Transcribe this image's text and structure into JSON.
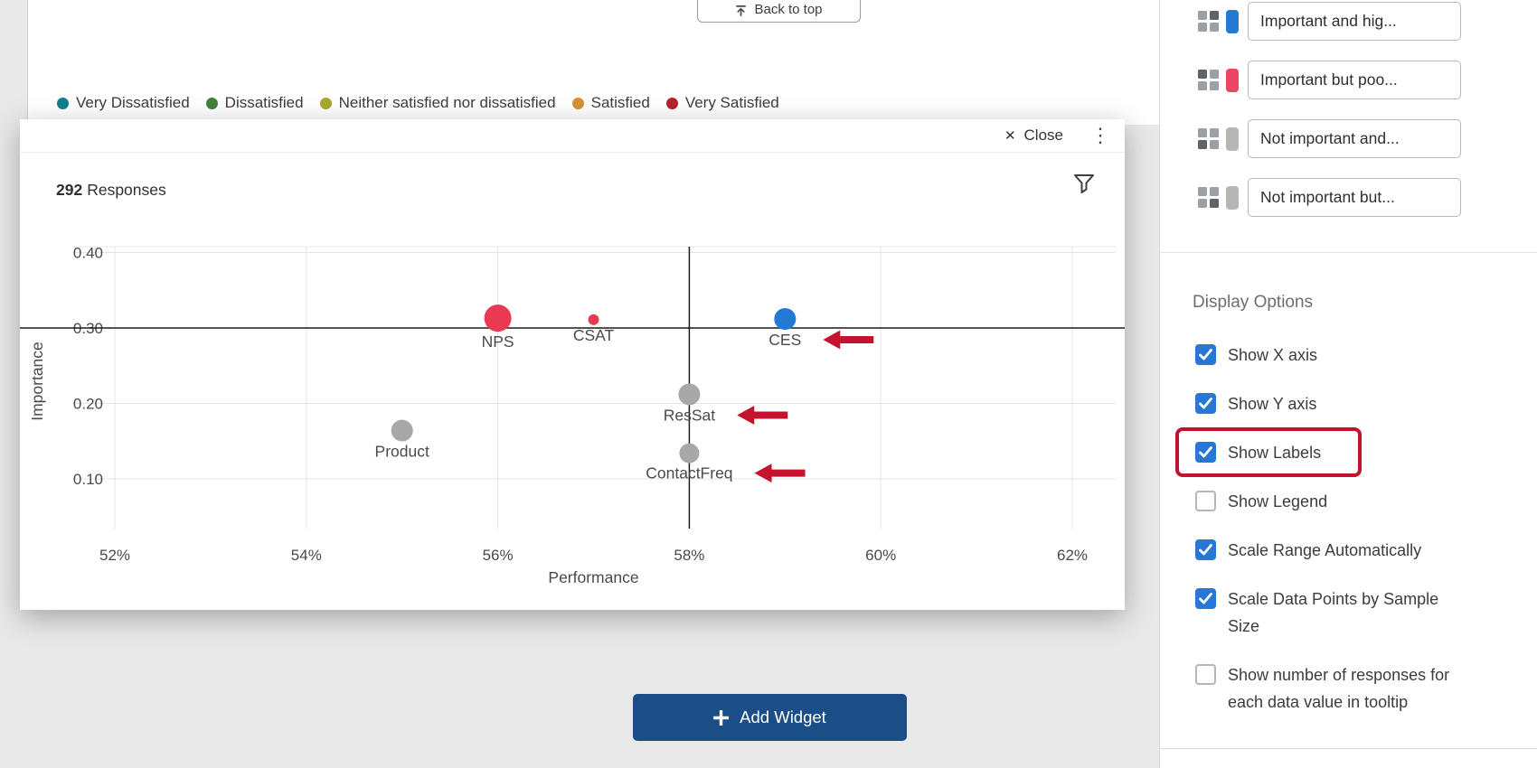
{
  "page": {
    "back_to_top": "Back to top",
    "add_widget": "Add Widget"
  },
  "satisfaction_legend": [
    {
      "label": "Very Dissatisfied",
      "color": "#10808c"
    },
    {
      "label": "Dissatisfied",
      "color": "#43823b"
    },
    {
      "label": "Neither satisfied nor dissatisfied",
      "color": "#a8a832"
    },
    {
      "label": "Satisfied",
      "color": "#d8922f"
    },
    {
      "label": "Very Satisfied",
      "color": "#b3252b"
    }
  ],
  "modal": {
    "close_icon": "✕",
    "close_label": "Close",
    "menu_icon": "⋮",
    "responses_count": "292",
    "responses_label": "Responses"
  },
  "chart_data": {
    "type": "scatter",
    "title": "",
    "xlabel": "Performance",
    "ylabel": "Importance",
    "responses": 292,
    "x_tick_values": [
      52,
      54,
      56,
      58,
      60,
      62
    ],
    "x_tick_labels": [
      "52%",
      "54%",
      "56%",
      "58%",
      "60%",
      "62%"
    ],
    "y_tick_values": [
      0.1,
      0.2,
      0.3,
      0.4
    ],
    "y_tick_labels": [
      "0.10",
      "0.20",
      "0.30",
      "0.40"
    ],
    "x_range": [
      51.6,
      62.6
    ],
    "y_range": [
      0.06,
      0.41
    ],
    "grid": true,
    "legend_position": "none",
    "quadrant_center": {
      "x": 58,
      "y": 0.3
    },
    "points": [
      {
        "label": "NPS",
        "x": 56,
        "y": 0.313,
        "r": 15,
        "color": "#e83a52",
        "arrow": false
      },
      {
        "label": "CSAT",
        "x": 57,
        "y": 0.311,
        "r": 6,
        "color": "#e83a52",
        "arrow": false
      },
      {
        "label": "CES",
        "x": 59,
        "y": 0.312,
        "r": 12,
        "color": "#2379d4",
        "arrow": true
      },
      {
        "label": "ResSat",
        "x": 58,
        "y": 0.212,
        "r": 12,
        "color": "#a8a8a8",
        "arrow": true
      },
      {
        "label": "ContactFreq",
        "x": 58,
        "y": 0.134,
        "r": 11,
        "color": "#a8a8a8",
        "arrow": true
      },
      {
        "label": "Product",
        "x": 55,
        "y": 0.164,
        "r": 12,
        "color": "#a8a8a8",
        "arrow": false
      }
    ],
    "annotation_arrow_color": "#c3132e"
  },
  "sidebar": {
    "quadrant_items": [
      {
        "label": "Important and hig...",
        "color": "#2379d4",
        "quadrant": "top-right"
      },
      {
        "label": "Important but poo...",
        "color": "#ec4561",
        "quadrant": "top-left"
      },
      {
        "label": "Not important and...",
        "color": "#b6b6b6",
        "quadrant": "bottom-left"
      },
      {
        "label": "Not important but...",
        "color": "#b6b6b6",
        "quadrant": "bottom-right"
      }
    ],
    "display_options_title": "Display Options",
    "options": [
      {
        "label": "Show X axis",
        "checked": true,
        "highlighted": false
      },
      {
        "label": "Show Y axis",
        "checked": true,
        "highlighted": false
      },
      {
        "label": "Show Labels",
        "checked": true,
        "highlighted": true
      },
      {
        "label": "Show Legend",
        "checked": false,
        "highlighted": false
      },
      {
        "label": "Scale Range Automatically",
        "checked": true,
        "highlighted": false
      },
      {
        "label": "Scale Data Points by Sample Size",
        "checked": true,
        "highlighted": false
      },
      {
        "label": "Show number of responses for each data value in tooltip",
        "checked": false,
        "highlighted": false
      }
    ]
  },
  "colors": {
    "checkbox_blue": "#2778d4",
    "annotation_red": "#c3132e",
    "add_widget_blue": "#1b4e87"
  }
}
